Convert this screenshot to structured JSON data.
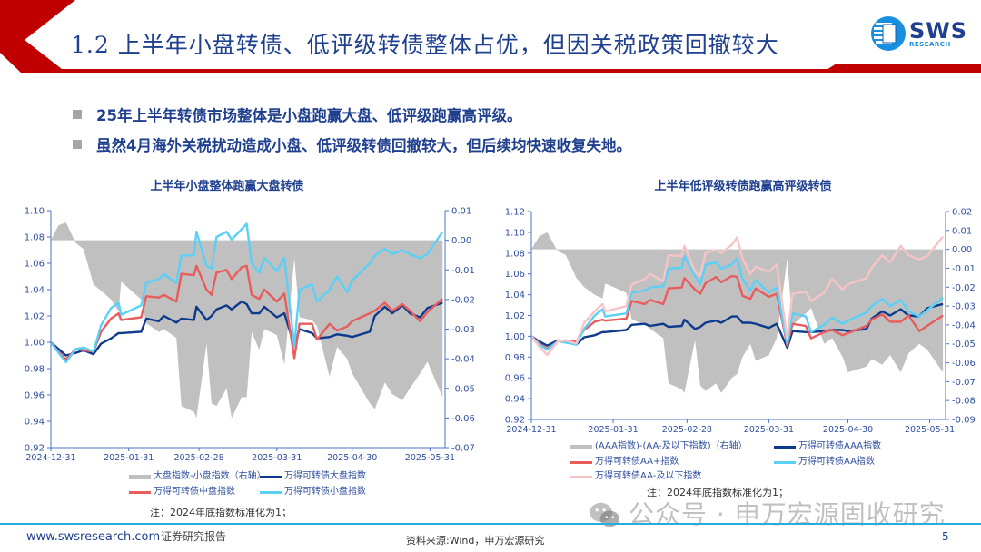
{
  "header": {
    "title": "1.2 上半年小盘转债、低评级转债整体占优，但因关税政策回撤较大",
    "logo_text": "SWS",
    "logo_subtext": "RESEARCH",
    "brand_red": "#c00000",
    "title_color": "#1f3f8f"
  },
  "bullets": [
    "25年上半年转债市场整体是小盘跑赢大盘、低评级跑赢高评级。",
    "虽然4月海外关税扰动造成小盘、低评级转债回撤较大，但后续均快速收复失地。"
  ],
  "chart_data": [
    {
      "type": "line",
      "title": "上半年小盘整体跑赢大盘转债",
      "note": "注：2024年底指数标准化为1；",
      "x_ticks": [
        "2024-12-31",
        "2025-01-31",
        "2025-02-28",
        "2025-03-31",
        "2025-04-30",
        "2025-05-31"
      ],
      "x_range": [
        "2024-12-31",
        "2025-06-06"
      ],
      "ylim": [
        0.92,
        1.1
      ],
      "y_ticks": [
        "0.92",
        "0.94",
        "0.96",
        "0.98",
        "1.00",
        "1.02",
        "1.04",
        "1.06",
        "1.08",
        "1.10"
      ],
      "y2lim": [
        -0.07,
        0.01
      ],
      "y2_ticks": [
        "-0.07",
        "-0.06",
        "-0.05",
        "-0.04",
        "-0.03",
        "-0.02",
        "-0.01",
        "0.00",
        "0.01"
      ],
      "grid": false,
      "legend_position": "bottom",
      "x": [
        "2024-12-31",
        "2025-01-03",
        "2025-01-06",
        "2025-01-10",
        "2025-01-13",
        "2025-01-17",
        "2025-01-20",
        "2025-01-24",
        "2025-01-27",
        "2025-01-28",
        "2025-02-05",
        "2025-02-07",
        "2025-02-12",
        "2025-02-14",
        "2025-02-19",
        "2025-02-21",
        "2025-02-26",
        "2025-02-27",
        "2025-03-03",
        "2025-03-05",
        "2025-03-07",
        "2025-03-11",
        "2025-03-13",
        "2025-03-17",
        "2025-03-19",
        "2025-03-21",
        "2025-03-24",
        "2025-03-26",
        "2025-03-31",
        "2025-04-03",
        "2025-04-07",
        "2025-04-09",
        "2025-04-14",
        "2025-04-16",
        "2025-04-21",
        "2025-04-24",
        "2025-04-28",
        "2025-04-30",
        "2025-05-07",
        "2025-05-09",
        "2025-05-13",
        "2025-05-16",
        "2025-05-20",
        "2025-05-23",
        "2025-05-27",
        "2025-05-30",
        "2025-06-05"
      ],
      "series": [
        {
          "name": "大盘指数-小盘指数（右轴）",
          "type": "area",
          "axis": "right",
          "color": "#c0c0c0",
          "values": [
            0,
            0.005,
            0.006,
            -0.001,
            -0.003,
            -0.015,
            -0.017,
            -0.02,
            -0.024,
            -0.014,
            -0.02,
            -0.028,
            -0.031,
            -0.03,
            -0.033,
            -0.056,
            -0.058,
            -0.06,
            -0.035,
            -0.055,
            -0.056,
            -0.05,
            -0.06,
            -0.053,
            -0.053,
            -0.031,
            -0.037,
            -0.03,
            -0.032,
            -0.042,
            -0.006,
            -0.026,
            -0.027,
            -0.029,
            -0.046,
            -0.036,
            -0.04,
            -0.045,
            -0.055,
            -0.057,
            -0.048,
            -0.052,
            -0.054,
            -0.05,
            -0.045,
            -0.041,
            -0.053
          ]
        },
        {
          "name": "万得可转债大盘指数",
          "type": "line",
          "axis": "left",
          "color": "#0d3a8c",
          "values": [
            1.0,
            0.995,
            0.99,
            0.992,
            0.994,
            0.991,
            0.999,
            1.003,
            1.007,
            1.007,
            1.008,
            1.018,
            1.016,
            1.02,
            1.015,
            1.018,
            1.017,
            1.027,
            1.017,
            1.02,
            1.025,
            1.028,
            1.025,
            1.031,
            1.029,
            1.022,
            1.022,
            1.027,
            1.019,
            1.022,
            0.997,
            1.01,
            1.007,
            1.003,
            1.004,
            1.006,
            1.005,
            1.004,
            1.008,
            1.02,
            1.027,
            1.022,
            1.028,
            1.022,
            1.019,
            1.026,
            1.03
          ]
        },
        {
          "name": "万得可转债中盘指数",
          "type": "line",
          "axis": "left",
          "color": "#e85c5c",
          "values": [
            1.0,
            0.993,
            0.987,
            0.995,
            0.994,
            0.993,
            1.008,
            1.018,
            1.022,
            1.017,
            1.019,
            1.035,
            1.034,
            1.036,
            1.031,
            1.052,
            1.051,
            1.058,
            1.04,
            1.036,
            1.053,
            1.055,
            1.048,
            1.057,
            1.058,
            1.036,
            1.033,
            1.04,
            1.031,
            1.037,
            0.988,
            1.014,
            1.014,
            1.002,
            1.014,
            1.009,
            1.012,
            1.016,
            1.022,
            1.024,
            1.03,
            1.024,
            1.029,
            1.024,
            1.016,
            1.023,
            1.033
          ]
        },
        {
          "name": "万得可转债小盘指数",
          "type": "line",
          "axis": "left",
          "color": "#5bd0f7",
          "values": [
            1.0,
            0.992,
            0.985,
            0.995,
            0.996,
            0.993,
            1.013,
            1.026,
            1.03,
            1.021,
            1.028,
            1.045,
            1.048,
            1.052,
            1.045,
            1.066,
            1.066,
            1.084,
            1.058,
            1.056,
            1.08,
            1.084,
            1.078,
            1.086,
            1.09,
            1.06,
            1.053,
            1.064,
            1.054,
            1.064,
            0.997,
            1.04,
            1.044,
            1.031,
            1.04,
            1.05,
            1.038,
            1.047,
            1.06,
            1.066,
            1.071,
            1.067,
            1.07,
            1.067,
            1.064,
            1.067,
            1.084
          ]
        }
      ]
    },
    {
      "type": "line",
      "title": "上半年低评级转债跑赢高评级转债",
      "note": "注：2024年底指数标准化为1；",
      "x_ticks": [
        "2024-12-31",
        "2025-01-31",
        "2025-02-28",
        "2025-03-31",
        "2025-04-30",
        "2025-05-31"
      ],
      "x_range": [
        "2024-12-31",
        "2025-06-06"
      ],
      "ylim": [
        0.92,
        1.12
      ],
      "y_ticks": [
        "0.92",
        "0.94",
        "0.96",
        "0.98",
        "1.00",
        "1.02",
        "1.04",
        "1.06",
        "1.08",
        "1.10",
        "1.12"
      ],
      "y2lim": [
        -0.09,
        0.02
      ],
      "y2_ticks": [
        "-0.09",
        "-0.08",
        "-0.07",
        "-0.06",
        "-0.05",
        "-0.04",
        "-0.03",
        "-0.02",
        "-0.01",
        "0.00",
        "0.01",
        "0.02"
      ],
      "grid": false,
      "legend_position": "bottom",
      "x": [
        "2024-12-31",
        "2025-01-03",
        "2025-01-06",
        "2025-01-10",
        "2025-01-13",
        "2025-01-17",
        "2025-01-20",
        "2025-01-24",
        "2025-01-27",
        "2025-01-28",
        "2025-02-05",
        "2025-02-07",
        "2025-02-12",
        "2025-02-14",
        "2025-02-19",
        "2025-02-21",
        "2025-02-26",
        "2025-02-27",
        "2025-03-03",
        "2025-03-05",
        "2025-03-07",
        "2025-03-11",
        "2025-03-13",
        "2025-03-17",
        "2025-03-19",
        "2025-03-21",
        "2025-03-24",
        "2025-03-26",
        "2025-03-31",
        "2025-04-03",
        "2025-04-07",
        "2025-04-09",
        "2025-04-14",
        "2025-04-16",
        "2025-04-21",
        "2025-04-24",
        "2025-04-28",
        "2025-04-30",
        "2025-05-07",
        "2025-05-09",
        "2025-05-13",
        "2025-05-16",
        "2025-05-20",
        "2025-05-23",
        "2025-05-27",
        "2025-05-30",
        "2025-06-05"
      ],
      "series": [
        {
          "name": "(AAA指数)-(AA-及以下指数)（右轴）",
          "type": "area",
          "axis": "right",
          "color": "#c0c0c0",
          "values": [
            0,
            0.007,
            0.009,
            -0.001,
            -0.003,
            -0.015,
            -0.02,
            -0.024,
            -0.026,
            -0.018,
            -0.023,
            -0.037,
            -0.04,
            -0.042,
            -0.047,
            -0.071,
            -0.074,
            -0.076,
            -0.048,
            -0.072,
            -0.075,
            -0.071,
            -0.076,
            -0.068,
            -0.066,
            -0.057,
            -0.05,
            -0.059,
            -0.056,
            -0.047,
            -0.005,
            -0.04,
            -0.034,
            -0.031,
            -0.05,
            -0.047,
            -0.057,
            -0.065,
            -0.062,
            -0.058,
            -0.061,
            -0.056,
            -0.065,
            -0.055,
            -0.05,
            -0.053,
            -0.065
          ]
        },
        {
          "name": "万得可转债AAA指数",
          "type": "line",
          "axis": "left",
          "color": "#0d3a8c",
          "values": [
            1.0,
            0.995,
            0.991,
            0.996,
            0.995,
            0.992,
            0.999,
            1.001,
            1.004,
            1.004,
            1.006,
            1.011,
            1.012,
            1.01,
            1.012,
            1.009,
            1.01,
            1.016,
            1.007,
            1.009,
            1.013,
            1.015,
            1.013,
            1.019,
            1.019,
            1.013,
            1.013,
            1.012,
            1.008,
            1.012,
            0.989,
            1.005,
            1.004,
            1.004,
            1.005,
            1.006,
            1.006,
            1.005,
            1.007,
            1.017,
            1.024,
            1.02,
            1.026,
            1.02,
            1.019,
            1.027,
            1.031
          ]
        },
        {
          "name": "万得可转债AA+指数",
          "type": "line",
          "axis": "left",
          "color": "#e85c5c",
          "values": [
            1.0,
            0.993,
            0.988,
            0.995,
            0.996,
            0.995,
            1.006,
            1.014,
            1.016,
            1.015,
            1.017,
            1.034,
            1.031,
            1.035,
            1.031,
            1.046,
            1.047,
            1.056,
            1.045,
            1.041,
            1.051,
            1.057,
            1.052,
            1.058,
            1.057,
            1.039,
            1.036,
            1.046,
            1.038,
            1.041,
            0.991,
            1.012,
            1.01,
            0.998,
            1.004,
            1.006,
            1.001,
            1.003,
            1.01,
            1.016,
            1.021,
            1.014,
            1.014,
            1.02,
            1.005,
            1.01,
            1.02
          ]
        },
        {
          "name": "万得可转债AA指数",
          "type": "line",
          "axis": "left",
          "color": "#5bd0f7",
          "values": [
            1.0,
            0.992,
            0.987,
            0.995,
            0.994,
            0.992,
            1.007,
            1.02,
            1.026,
            1.019,
            1.022,
            1.042,
            1.044,
            1.047,
            1.048,
            1.065,
            1.066,
            1.077,
            1.058,
            1.05,
            1.069,
            1.071,
            1.065,
            1.069,
            1.075,
            1.055,
            1.044,
            1.054,
            1.042,
            1.047,
            0.993,
            1.022,
            1.019,
            1.004,
            1.011,
            1.018,
            1.012,
            1.015,
            1.023,
            1.029,
            1.036,
            1.029,
            1.035,
            1.024,
            1.019,
            1.025,
            1.037
          ]
        },
        {
          "name": "万得可转债AA-及以下指数",
          "type": "line",
          "axis": "left",
          "color": "#f7c4c6",
          "values": [
            1.0,
            0.99,
            0.982,
            0.995,
            0.996,
            0.993,
            1.013,
            1.024,
            1.031,
            1.024,
            1.029,
            1.05,
            1.055,
            1.06,
            1.053,
            1.078,
            1.077,
            1.087,
            1.062,
            1.058,
            1.08,
            1.083,
            1.08,
            1.088,
            1.095,
            1.075,
            1.06,
            1.067,
            1.062,
            1.069,
            0.998,
            1.041,
            1.043,
            1.034,
            1.042,
            1.055,
            1.045,
            1.05,
            1.056,
            1.066,
            1.078,
            1.071,
            1.087,
            1.078,
            1.074,
            1.077,
            1.096
          ]
        }
      ]
    }
  ],
  "watermark": "公众号 · 申万宏源固收研究",
  "footer": {
    "website": "www.swsresearch.com",
    "report_type": "证券研究报告",
    "source": "资料来源:Wind，申万宏源研究",
    "page_number": "5",
    "link_color": "#1f3f8f",
    "line_color": "#29abe2"
  }
}
